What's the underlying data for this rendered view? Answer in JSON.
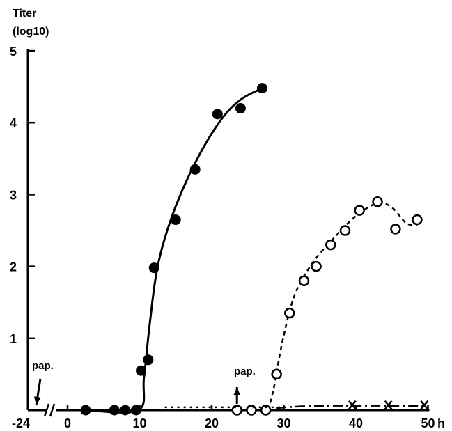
{
  "chart_data": {
    "type": "line",
    "ylabel": "Titer",
    "ylabel_unit": "(log10)",
    "xunit": "h",
    "x_ticks": [
      -24,
      0,
      10,
      20,
      30,
      40,
      50
    ],
    "x_tick_labels": [
      "-24",
      "0",
      "10",
      "20",
      "30",
      "40",
      "50"
    ],
    "y_ticks": [
      1,
      2,
      3,
      4,
      5
    ],
    "y_tick_labels": [
      "1",
      "2",
      "3",
      "4",
      "5"
    ],
    "xlim": [
      0,
      50
    ],
    "ylim": [
      0,
      5
    ],
    "axis_break": true,
    "grid": false,
    "series": [
      {
        "marker": "filled-circle",
        "line": "solid",
        "color": "#000000",
        "points": [
          {
            "x": 2.5,
            "y": 0.0
          },
          {
            "x": 6.5,
            "y": 0.0
          },
          {
            "x": 8.0,
            "y": 0.0
          },
          {
            "x": 9.5,
            "y": 0.0
          },
          {
            "x": 10.2,
            "y": 0.55
          },
          {
            "x": 11.2,
            "y": 0.7
          },
          {
            "x": 12.0,
            "y": 1.98
          },
          {
            "x": 15.0,
            "y": 2.65
          },
          {
            "x": 17.7,
            "y": 3.35
          },
          {
            "x": 20.8,
            "y": 4.12
          },
          {
            "x": 24.0,
            "y": 4.2
          },
          {
            "x": 27.0,
            "y": 4.48
          }
        ],
        "curve": [
          {
            "x": 2.5,
            "y": 0.0
          },
          {
            "x": 9.8,
            "y": 0.0
          },
          {
            "x": 10.6,
            "y": 0.45
          },
          {
            "x": 11.4,
            "y": 1.2
          },
          {
            "x": 12.5,
            "y": 2.0
          },
          {
            "x": 14.5,
            "y": 2.7
          },
          {
            "x": 17.5,
            "y": 3.4
          },
          {
            "x": 21.0,
            "y": 4.0
          },
          {
            "x": 24.0,
            "y": 4.32
          },
          {
            "x": 27.5,
            "y": 4.5
          }
        ]
      },
      {
        "marker": "open-circle",
        "line": "dashed",
        "color": "#000000",
        "points": [
          {
            "x": 23.5,
            "y": 0.0
          },
          {
            "x": 25.5,
            "y": 0.0
          },
          {
            "x": 27.5,
            "y": 0.0
          },
          {
            "x": 29.0,
            "y": 0.5
          },
          {
            "x": 30.8,
            "y": 1.35
          },
          {
            "x": 32.8,
            "y": 1.8
          },
          {
            "x": 34.5,
            "y": 2.0
          },
          {
            "x": 36.5,
            "y": 2.3
          },
          {
            "x": 38.5,
            "y": 2.5
          },
          {
            "x": 40.5,
            "y": 2.78
          },
          {
            "x": 43.0,
            "y": 2.9
          },
          {
            "x": 45.5,
            "y": 2.52
          },
          {
            "x": 48.5,
            "y": 2.65
          }
        ],
        "curve": [
          {
            "x": 27.8,
            "y": 0.0
          },
          {
            "x": 28.6,
            "y": 0.3
          },
          {
            "x": 29.8,
            "y": 0.95
          },
          {
            "x": 31.5,
            "y": 1.6
          },
          {
            "x": 34.0,
            "y": 2.05
          },
          {
            "x": 37.0,
            "y": 2.4
          },
          {
            "x": 40.0,
            "y": 2.7
          },
          {
            "x": 43.0,
            "y": 2.88
          },
          {
            "x": 45.0,
            "y": 2.82
          },
          {
            "x": 47.0,
            "y": 2.6
          },
          {
            "x": 48.5,
            "y": 2.58
          }
        ]
      },
      {
        "marker": "x",
        "line": "dash-dot",
        "color": "#000000",
        "points": [
          {
            "x": 39.5,
            "y": 0.07
          },
          {
            "x": 44.5,
            "y": 0.07
          },
          {
            "x": 49.5,
            "y": 0.07
          }
        ],
        "curve": [
          {
            "x": 29.0,
            "y": 0.03
          },
          {
            "x": 35.0,
            "y": 0.06
          },
          {
            "x": 49.5,
            "y": 0.06
          }
        ]
      },
      {
        "marker": "none",
        "line": "dotted",
        "color": "#000000",
        "points": [],
        "curve": [
          {
            "x": 13.5,
            "y": 0.04
          },
          {
            "x": 30.0,
            "y": 0.04
          }
        ]
      }
    ],
    "annotations": [
      {
        "text": "pap.",
        "x": -24,
        "arrow": "down"
      },
      {
        "text": "pap.",
        "x": 23.5,
        "arrow": "up"
      }
    ]
  }
}
